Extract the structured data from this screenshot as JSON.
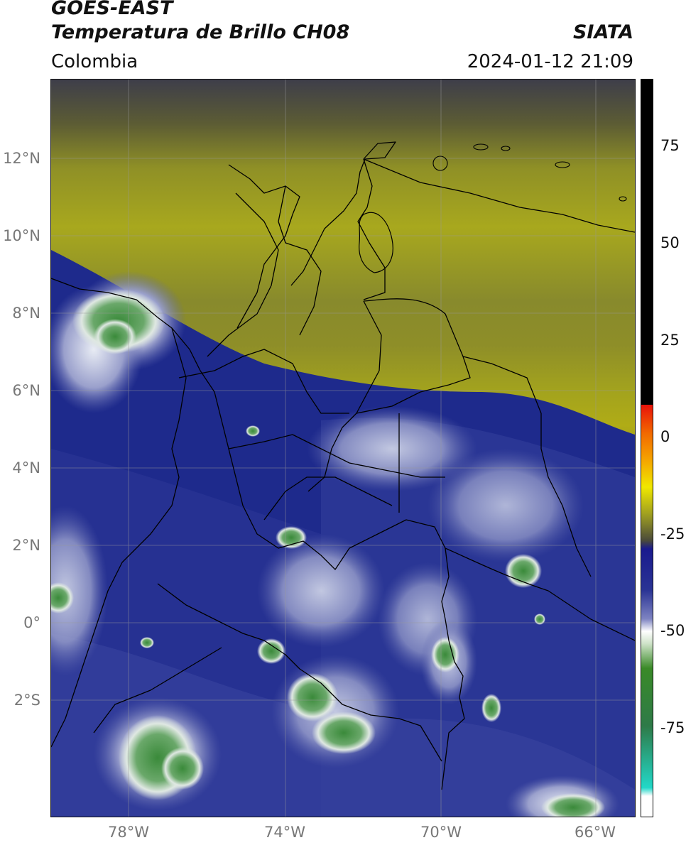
{
  "header": {
    "satellite": "GOES-EAST",
    "product": "Temperatura de Brillo CH08",
    "region": "Colombia",
    "agency": "SIATA",
    "datetime": "2024-01-12 21:09"
  },
  "map": {
    "lat_labels": [
      "12°N",
      "10°N",
      "8°N",
      "6°N",
      "4°N",
      "2°N",
      "0°",
      "2°S"
    ],
    "lon_labels": [
      "78°W",
      "74°W",
      "70°W",
      "66°W"
    ],
    "gridlines": true
  },
  "colorbar": {
    "ticks": [
      "75",
      "50",
      "25",
      "0",
      "-25",
      "-50",
      "-75"
    ],
    "colors": [
      "#000000",
      "#e8120a",
      "#f5a000",
      "#f0e800",
      "#2a2a2a",
      "#1a1a8e",
      "#ffffff",
      "#3a8a28",
      "#22d8c8"
    ]
  }
}
